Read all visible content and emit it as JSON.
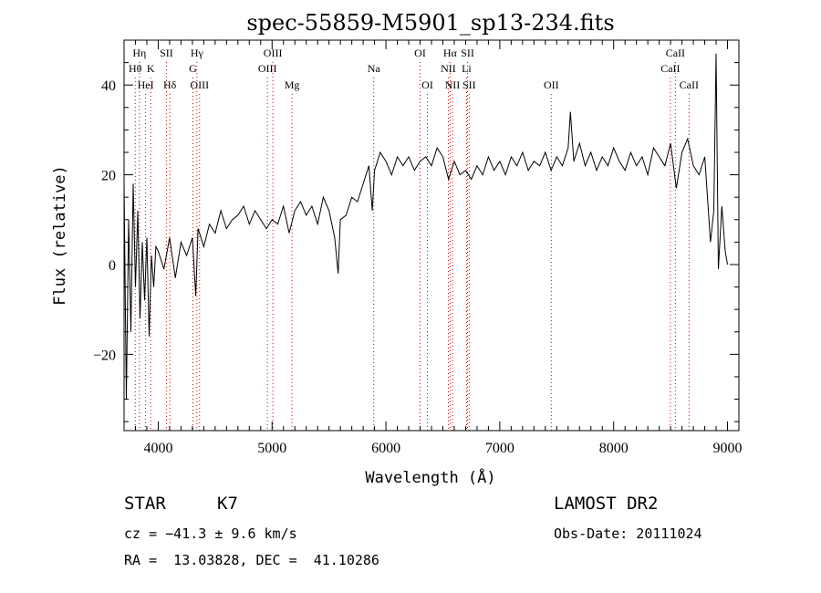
{
  "chart_data": {
    "type": "line",
    "title": "spec-55859-M5901_sp13-234.fits",
    "xlabel": "Wavelength (Å)",
    "ylabel": "Flux (relative)",
    "xlim": [
      3700,
      9100
    ],
    "ylim": [
      -37,
      50
    ],
    "x_ticks": [
      4000,
      5000,
      6000,
      7000,
      8000,
      9000
    ],
    "y_ticks": [
      -20,
      0,
      20,
      40
    ],
    "grid": false,
    "series": [
      {
        "x": [
          3700,
          3720,
          3740,
          3760,
          3780,
          3800,
          3820,
          3840,
          3860,
          3880,
          3900,
          3920,
          3940,
          3960,
          3980,
          4000,
          4050,
          4100,
          4150,
          4200,
          4250,
          4300,
          4330,
          4350,
          4400,
          4450,
          4500,
          4550,
          4600,
          4650,
          4700,
          4750,
          4800,
          4850,
          4900,
          4950,
          5000,
          5050,
          5100,
          5150,
          5200,
          5250,
          5300,
          5350,
          5400,
          5450,
          5500,
          5550,
          5580,
          5600,
          5650,
          5700,
          5750,
          5800,
          5850,
          5880,
          5900,
          5950,
          6000,
          6050,
          6100,
          6150,
          6200,
          6250,
          6300,
          6350,
          6400,
          6450,
          6500,
          6550,
          6600,
          6650,
          6700,
          6750,
          6800,
          6850,
          6900,
          6950,
          7000,
          7050,
          7100,
          7150,
          7200,
          7250,
          7300,
          7350,
          7400,
          7450,
          7500,
          7550,
          7600,
          7620,
          7650,
          7700,
          7750,
          7800,
          7850,
          7900,
          7950,
          8000,
          8050,
          8100,
          8150,
          8200,
          8250,
          8300,
          8350,
          8400,
          8450,
          8500,
          8550,
          8600,
          8650,
          8700,
          8750,
          8800,
          8850,
          8880,
          8900,
          8920,
          8950,
          8980,
          9000
        ],
        "y": [
          18,
          -30,
          10,
          -15,
          18,
          -5,
          12,
          -12,
          5,
          -8,
          6,
          -16,
          2,
          -5,
          4,
          3,
          -1,
          6,
          -3,
          5,
          2,
          6,
          -7,
          8,
          4,
          9,
          7,
          12,
          8,
          10,
          11,
          13,
          9,
          12,
          10,
          8,
          10,
          9,
          13,
          7,
          12,
          14,
          11,
          13,
          9,
          15,
          12,
          6,
          -2,
          10,
          11,
          15,
          14,
          18,
          22,
          12,
          21,
          25,
          23,
          20,
          24,
          22,
          24,
          21,
          23,
          24,
          22,
          26,
          24,
          19,
          23,
          20,
          21,
          19,
          22,
          20,
          24,
          21,
          23,
          20,
          24,
          22,
          25,
          21,
          23,
          22,
          25,
          21,
          24,
          22,
          26,
          34,
          23,
          27,
          22,
          25,
          21,
          24,
          22,
          26,
          23,
          21,
          25,
          22,
          24,
          20,
          26,
          24,
          22,
          27,
          17,
          25,
          28,
          22,
          20,
          24,
          5,
          12,
          47,
          -1,
          13,
          3,
          0
        ]
      }
    ],
    "lines": [
      {
        "wavelength": 3835,
        "label": "Hη",
        "row": 1
      },
      {
        "wavelength": 3798,
        "label": "Hθ",
        "row": 2
      },
      {
        "wavelength": 3889,
        "label": "HeI",
        "row": 3
      },
      {
        "wavelength": 3934,
        "label": "K",
        "row": 2
      },
      {
        "wavelength": 4072,
        "label": "SII",
        "row": 1
      },
      {
        "wavelength": 4102,
        "label": "Hδ",
        "row": 3
      },
      {
        "wavelength": 4340,
        "label": "Hγ",
        "row": 1
      },
      {
        "wavelength": 4305,
        "label": "G",
        "row": 2
      },
      {
        "wavelength": 4363,
        "label": "OIII",
        "row": 3
      },
      {
        "wavelength": 5007,
        "label": "OIII",
        "row": 1
      },
      {
        "wavelength": 4959,
        "label": "OIII",
        "row": 2
      },
      {
        "wavelength": 5175,
        "label": "Mg",
        "row": 3
      },
      {
        "wavelength": 5893,
        "label": "Na",
        "row": 2
      },
      {
        "wavelength": 6300,
        "label": "OI",
        "row": 1
      },
      {
        "wavelength": 6364,
        "label": "OI",
        "row": 3
      },
      {
        "wavelength": 6563,
        "label": "Hα",
        "row": 1
      },
      {
        "wavelength": 6548,
        "label": "NII",
        "row": 2
      },
      {
        "wavelength": 6584,
        "label": "NII",
        "row": 3
      },
      {
        "wavelength": 6717,
        "label": "SII",
        "row": 1
      },
      {
        "wavelength": 6708,
        "label": "Li",
        "row": 2
      },
      {
        "wavelength": 6731,
        "label": "SII",
        "row": 3
      },
      {
        "wavelength": 7452,
        "label": "OII",
        "row": 3
      },
      {
        "wavelength": 8542,
        "label": "CaII",
        "row": 1
      },
      {
        "wavelength": 8498,
        "label": "CaII",
        "row": 2
      },
      {
        "wavelength": 8662,
        "label": "CaII",
        "row": 3
      }
    ]
  },
  "info": {
    "class": "STAR",
    "subclass": "K7",
    "survey": "LAMOST DR2",
    "cz": "cz = −41.3 ± 9.6 km/s",
    "obs_date": "Obs-Date: 20111024",
    "coords": "RA =  13.03828, DEC =  41.10286"
  }
}
